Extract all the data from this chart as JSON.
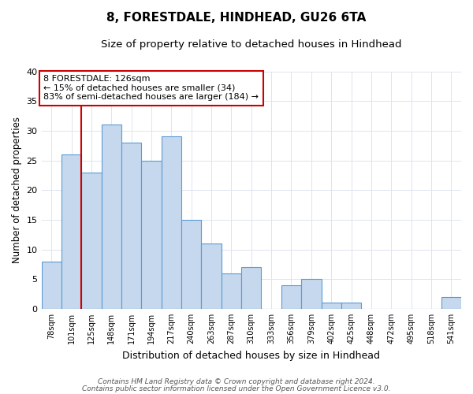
{
  "title": "8, FORESTDALE, HINDHEAD, GU26 6TA",
  "subtitle": "Size of property relative to detached houses in Hindhead",
  "xlabel": "Distribution of detached houses by size in Hindhead",
  "ylabel": "Number of detached properties",
  "bar_labels": [
    "78sqm",
    "101sqm",
    "125sqm",
    "148sqm",
    "171sqm",
    "194sqm",
    "217sqm",
    "240sqm",
    "263sqm",
    "287sqm",
    "310sqm",
    "333sqm",
    "356sqm",
    "379sqm",
    "402sqm",
    "425sqm",
    "448sqm",
    "472sqm",
    "495sqm",
    "518sqm",
    "541sqm"
  ],
  "bar_values": [
    8,
    26,
    23,
    31,
    28,
    25,
    29,
    15,
    11,
    6,
    7,
    0,
    4,
    5,
    1,
    1,
    0,
    0,
    0,
    0,
    2
  ],
  "bar_color": "#c5d8ed",
  "bar_edge_color": "#5b9bd5",
  "marker_index": 2,
  "marker_color": "#cc0000",
  "ylim": [
    0,
    40
  ],
  "yticks": [
    0,
    5,
    10,
    15,
    20,
    25,
    30,
    35,
    40
  ],
  "annotation_line1": "8 FORESTDALE: 126sqm",
  "annotation_line2": "← 15% of detached houses are smaller (34)",
  "annotation_line3": "83% of semi-detached houses are larger (184) →",
  "annotation_box_edge": "#cc0000",
  "footer1": "Contains HM Land Registry data © Crown copyright and database right 2024.",
  "footer2": "Contains public sector information licensed under the Open Government Licence v3.0.",
  "title_fontsize": 11,
  "subtitle_fontsize": 9.5,
  "xlabel_fontsize": 9,
  "ylabel_fontsize": 8.5,
  "annotation_fontsize": 8,
  "footer_fontsize": 6.5,
  "background_color": "#ffffff",
  "grid_color": "#dde4ef"
}
